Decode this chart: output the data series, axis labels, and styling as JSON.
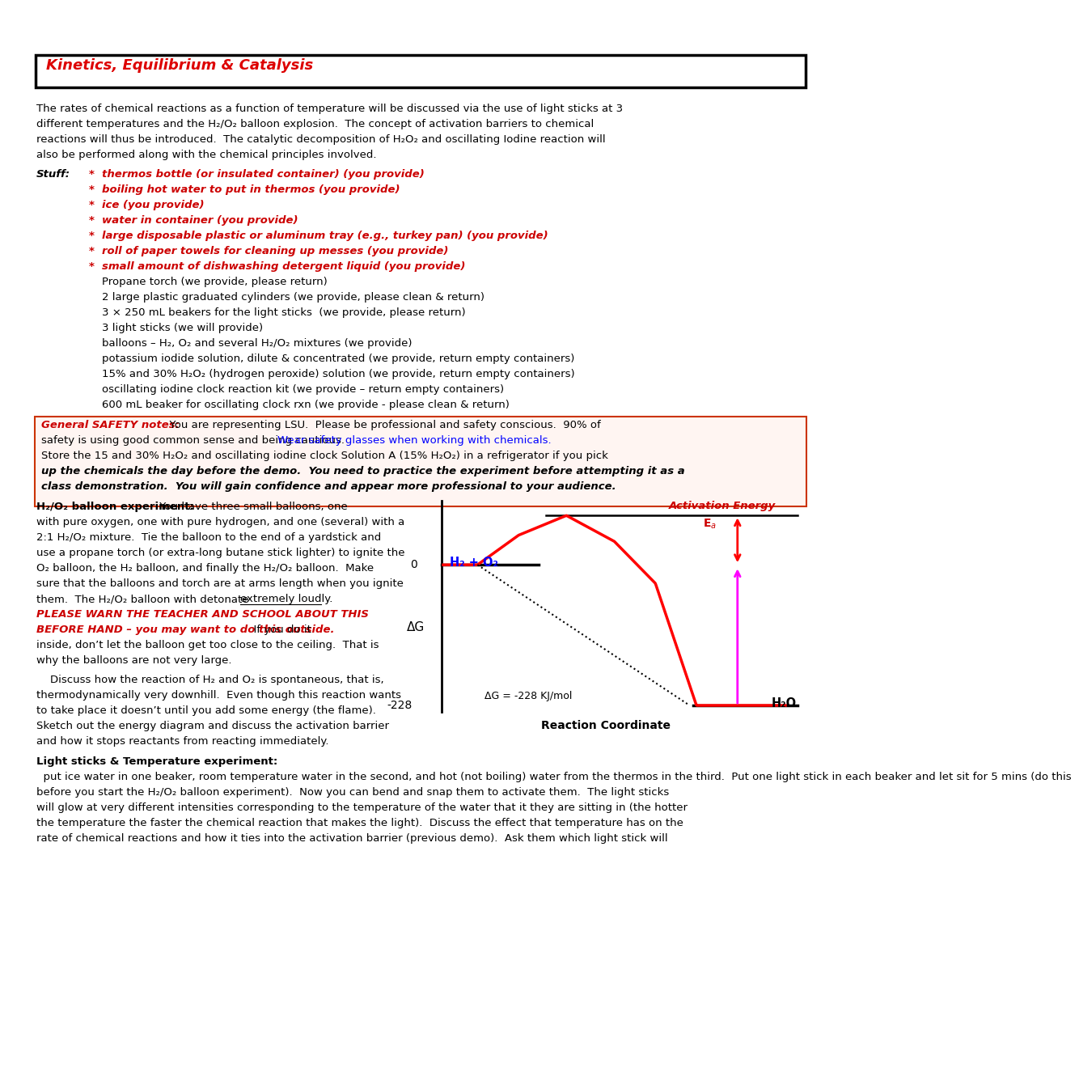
{
  "title": "Kinetics, Equilibrium & Catalysis",
  "bg_color": "#ffffff",
  "title_color": "#dd0000",
  "intro_lines": [
    "The rates of chemical reactions as a function of temperature will be discussed via the use of light sticks at 3",
    "different temperatures and the H₂/O₂ balloon explosion.  The concept of activation barriers to chemical",
    "reactions will thus be introduced.  The catalytic decomposition of H₂O₂ and oscillating Iodine reaction will",
    "also be performed along with the chemical principles involved."
  ],
  "red_items": [
    "thermos bottle (or insulated container) (you provide)",
    "boiling hot water to put in thermos (you provide)",
    "ice (you provide)",
    "water in container (you provide)",
    "large disposable plastic or aluminum tray (e.g., turkey pan) (you provide)",
    "roll of paper towels for cleaning up messes (you provide)",
    "small amount of dishwashing detergent liquid (you provide)"
  ],
  "black_items": [
    "Propane torch (we provide, please return)",
    "2 large plastic graduated cylinders (we provide, please clean & return)",
    "3 × 250 mL beakers for the light sticks  (we provide, please return)",
    "3 light sticks (we will provide)",
    "balloons – H₂, O₂ and several H₂/O₂ mixtures (we provide)",
    "potassium iodide solution, dilute & concentrated (we provide, return empty containers)",
    "15% and 30% H₂O₂ (hydrogen peroxide) solution (we provide, return empty containers)",
    "oscillating iodine clock reaction kit (we provide – return empty containers)",
    "600 mL beaker for oscillating clock rxn (we provide - please clean & return)"
  ],
  "safety_line1": "  You are representing LSU.  Please be professional and safety conscious.  90% of",
  "safety_line2a": "safety is using good common sense and being cautious. ",
  "safety_line2b": "Wear safety glasses when working with chemicals.",
  "safety_line3": "Store the 15 and 30% H₂O₂ and oscillating iodine clock Solution A (15% H₂O₂) in a refrigerator if you pick",
  "safety_line4": "up the chemicals the day before the demo.  You need to practice the experiment before attempting it as a",
  "safety_line5": "class demonstration.  You will gain confidence and appear more professional to your audience.",
  "balloon_lines": [
    " You have three small balloons, one",
    "with pure oxygen, one with pure hydrogen, and one (several) with a",
    "2:1 H₂/O₂ mixture.  Tie the balloon to the end of a yardstick and",
    "use a propane torch (or extra-long butane stick lighter) to ignite the",
    "O₂ balloon, the H₂ balloon, and finally the H₂/O₂ balloon.  Make",
    "sure that the balloons and torch are at arms length when you ignite",
    "them.  The H₂/O₂ balloon with detonate extremely loudly."
  ],
  "warn_line1": "PLEASE WARN THE TEACHER AND SCHOOL ABOUT THIS",
  "warn_line2a": "BEFORE HAND – you may want to do this outside.",
  "warn_line2b": "  If you do it",
  "warn_line3": "inside, don’t let the balloon get too close to the ceiling.  That is",
  "warn_line4": "why the balloons are not very large.",
  "discuss_lines": [
    "    Discuss how the reaction of H₂ and O₂ is spontaneous, that is,",
    "thermodynamically very downhill.  Even though this reaction wants",
    "to take place it doesn’t until you add some energy (the flame).",
    "Sketch out the energy diagram and discuss the activation barrier",
    "and how it stops reactants from reacting immediately."
  ],
  "light_title": "Light sticks & Temperature experiment:",
  "light_lines": [
    "  put ice water in one beaker, room temperature water in the second, and hot (not boiling) water from the thermos in the third.  Put one light stick in each beaker and let sit for 5 mins (do this",
    "before you start the H₂/O₂ balloon experiment).  Now you can bend and snap them to activate them.  The light sticks",
    "will glow at very different intensities corresponding to the temperature of the water that it they are sitting in (the hotter",
    "the temperature the faster the chemical reaction that makes the light).  Discuss the effect that temperature has on the",
    "rate of chemical reactions and how it ties into the activation barrier (previous demo).  Ask them which light stick will"
  ]
}
